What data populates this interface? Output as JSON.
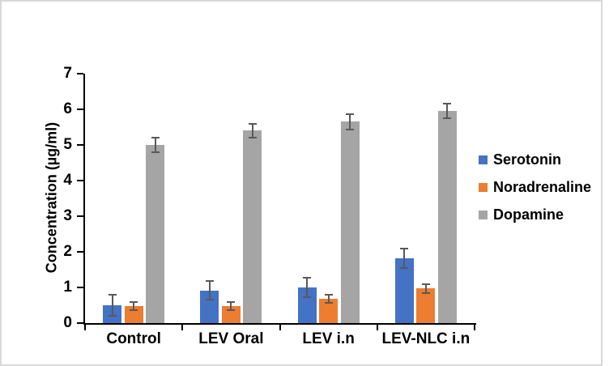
{
  "figure": {
    "background_color": "#ffffff",
    "border_color": "#d8d8d8",
    "title": ""
  },
  "chart_data": {
    "type": "bar",
    "title": "",
    "xlabel": "",
    "ylabel": "Concentration (µg/ml)",
    "ylim": [
      0,
      7
    ],
    "ytick_step": 1,
    "ytick_labels": [
      "0",
      "1",
      "2",
      "3",
      "4",
      "5",
      "6",
      "7"
    ],
    "grid": false,
    "legend_position": "right",
    "error_bars": true,
    "error_bar_color": "#595959",
    "axis_color": "#000000",
    "categories": [
      "Control",
      "LEV Oral",
      "LEV i.n",
      "LEV-NLC i.n"
    ],
    "series": [
      {
        "name": "Serotonin",
        "color": "#4472C4",
        "values": [
          0.5,
          0.92,
          1.0,
          1.82
        ],
        "errors": [
          0.3,
          0.27,
          0.28,
          0.27
        ]
      },
      {
        "name": "Noradrenaline",
        "color": "#ED7D31",
        "values": [
          0.48,
          0.48,
          0.68,
          0.97
        ],
        "errors": [
          0.12,
          0.12,
          0.12,
          0.13
        ]
      },
      {
        "name": "Dopamine",
        "color": "#A5A5A5",
        "values": [
          5.0,
          5.4,
          5.65,
          5.95
        ],
        "errors": [
          0.2,
          0.2,
          0.22,
          0.2
        ]
      }
    ]
  }
}
